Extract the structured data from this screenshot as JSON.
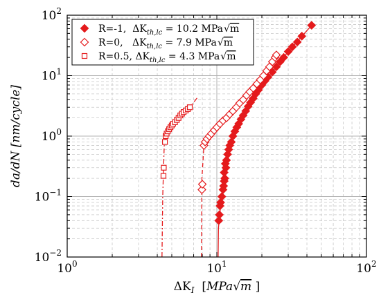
{
  "chart_data": {
    "type": "scatter",
    "x_scale": "log",
    "y_scale": "log",
    "xlim": [
      1,
      100
    ],
    "ylim": [
      0.01,
      100
    ],
    "x_ticks": [
      {
        "value": 1,
        "base": "10",
        "exp": "0"
      },
      {
        "value": 10,
        "base": "10",
        "exp": "1"
      },
      {
        "value": 100,
        "base": "10",
        "exp": "2"
      }
    ],
    "y_ticks": [
      {
        "value": 0.01,
        "base": "10",
        "exp": "−2"
      },
      {
        "value": 0.1,
        "base": "10",
        "exp": "−1"
      },
      {
        "value": 1,
        "base": "10",
        "exp": "0"
      },
      {
        "value": 10,
        "base": "10",
        "exp": "1"
      },
      {
        "value": 100,
        "base": "10",
        "exp": "2"
      }
    ],
    "xlabel": "ΔK_I [MPa√m]",
    "ylabel": "da/dN [nm/cycle]",
    "grid": true,
    "legend_position": "top-left",
    "color": "#e41a1c",
    "series": [
      {
        "name": "R=-1,  ΔK_th,lc = 10.2 MPa√m",
        "marker": "diamond-filled",
        "fit_style": "solid",
        "points": [
          [
            10.3,
            0.04
          ],
          [
            10.4,
            0.05
          ],
          [
            10.5,
            0.07
          ],
          [
            10.6,
            0.08
          ],
          [
            10.8,
            0.1
          ],
          [
            11.0,
            0.13
          ],
          [
            11.1,
            0.15
          ],
          [
            11.2,
            0.18
          ],
          [
            11.3,
            0.2
          ],
          [
            11.2,
            0.25
          ],
          [
            11.5,
            0.3
          ],
          [
            11.4,
            0.35
          ],
          [
            11.6,
            0.4
          ],
          [
            11.8,
            0.5
          ],
          [
            12.0,
            0.6
          ],
          [
            12.2,
            0.7
          ],
          [
            12.5,
            0.8
          ],
          [
            12.8,
            1.0
          ],
          [
            13.2,
            1.2
          ],
          [
            13.6,
            1.4
          ],
          [
            14.0,
            1.6
          ],
          [
            14.5,
            1.9
          ],
          [
            15.0,
            2.2
          ],
          [
            15.6,
            2.6
          ],
          [
            16.2,
            3.1
          ],
          [
            16.8,
            3.6
          ],
          [
            17.5,
            4.2
          ],
          [
            18.2,
            5.0
          ],
          [
            19.0,
            5.8
          ],
          [
            20.0,
            7.0
          ],
          [
            21.0,
            8.2
          ],
          [
            22.0,
            9.5
          ],
          [
            23.5,
            11.5
          ],
          [
            25.0,
            14.0
          ],
          [
            26.5,
            17.0
          ],
          [
            28.0,
            20.0
          ],
          [
            30.0,
            25.0
          ],
          [
            32.0,
            30.0
          ],
          [
            34.5,
            36.0
          ],
          [
            37.0,
            45.0
          ],
          [
            43.0,
            68.0
          ]
        ],
        "fit": [
          [
            10.2,
            0.01
          ],
          [
            10.25,
            0.03
          ],
          [
            10.6,
            0.07
          ],
          [
            11.3,
            0.2
          ],
          [
            12.5,
            0.8
          ],
          [
            15.0,
            2.2
          ],
          [
            20.0,
            7.0
          ],
          [
            30.0,
            25.0
          ],
          [
            43.0,
            68.0
          ]
        ]
      },
      {
        "name": "R=0,  ΔK_th,lc = 7.9 MPa√m",
        "marker": "diamond-open",
        "fit_style": "dashed",
        "points": [
          [
            7.95,
            0.13
          ],
          [
            8.0,
            0.16
          ],
          [
            8.2,
            0.7
          ],
          [
            8.35,
            0.8
          ],
          [
            8.6,
            0.9
          ],
          [
            8.9,
            1.0
          ],
          [
            9.2,
            1.1
          ],
          [
            9.6,
            1.25
          ],
          [
            10.0,
            1.4
          ],
          [
            10.5,
            1.6
          ],
          [
            11.0,
            1.8
          ],
          [
            11.6,
            2.0
          ],
          [
            12.2,
            2.3
          ],
          [
            12.8,
            2.6
          ],
          [
            13.5,
            3.0
          ],
          [
            14.2,
            3.5
          ],
          [
            15.0,
            4.0
          ],
          [
            15.8,
            4.7
          ],
          [
            16.6,
            5.4
          ],
          [
            17.5,
            6.2
          ],
          [
            18.5,
            7.3
          ],
          [
            19.5,
            8.5
          ],
          [
            20.5,
            10.0
          ],
          [
            21.5,
            12.0
          ],
          [
            22.5,
            14.0
          ],
          [
            23.5,
            17.0
          ],
          [
            24.5,
            20.0
          ],
          [
            25.0,
            22.0
          ]
        ],
        "fit": [
          [
            7.9,
            0.01
          ],
          [
            7.95,
            0.2
          ],
          [
            8.2,
            0.7
          ],
          [
            9.0,
            1.0
          ],
          [
            11.0,
            1.8
          ],
          [
            15.0,
            4.0
          ],
          [
            20.0,
            9.5
          ],
          [
            25.0,
            22.0
          ]
        ]
      },
      {
        "name": "R=0.5, ΔK_th,lc =  4.3 MPa√m",
        "marker": "square-open",
        "fit_style": "dashdot",
        "points": [
          [
            4.4,
            0.22
          ],
          [
            4.42,
            0.3
          ],
          [
            4.5,
            0.8
          ],
          [
            4.55,
            1.0
          ],
          [
            4.62,
            1.1
          ],
          [
            4.7,
            1.2
          ],
          [
            4.8,
            1.3
          ],
          [
            4.9,
            1.4
          ],
          [
            5.0,
            1.5
          ],
          [
            5.1,
            1.6
          ],
          [
            5.25,
            1.7
          ],
          [
            5.4,
            1.85
          ],
          [
            5.55,
            2.0
          ],
          [
            5.7,
            2.2
          ],
          [
            5.85,
            2.35
          ],
          [
            6.0,
            2.5
          ],
          [
            6.2,
            2.65
          ],
          [
            6.4,
            2.8
          ],
          [
            6.6,
            3.0
          ]
        ],
        "fit": [
          [
            4.3,
            0.01
          ],
          [
            4.35,
            0.1
          ],
          [
            4.45,
            0.7
          ],
          [
            4.6,
            1.05
          ],
          [
            5.0,
            1.5
          ],
          [
            5.7,
            2.2
          ],
          [
            6.6,
            3.0
          ],
          [
            7.5,
            4.5
          ]
        ]
      }
    ]
  },
  "legend": {
    "entries": [
      {
        "prefix": "R=-1,  ",
        "dk": "ΔK",
        "sub": "th,lc",
        "value": " = 10.2 MPa",
        "unit": "m"
      },
      {
        "prefix": "R=0,   ",
        "dk": "ΔK",
        "sub": "th,lc",
        "value": " = 7.9 MPa",
        "unit": "m"
      },
      {
        "prefix": "R=0.5, ",
        "dk": "ΔK",
        "sub": "th,lc",
        "value": " =  4.3 MPa",
        "unit": "m"
      }
    ]
  },
  "labels": {
    "x_main": "ΔK",
    "x_sub": "I",
    "x_bracket_open": "[",
    "x_unit": "MPa",
    "x_root": "m",
    "x_bracket_close": "]",
    "y_text": "da/dN  [nm/cycle]"
  }
}
